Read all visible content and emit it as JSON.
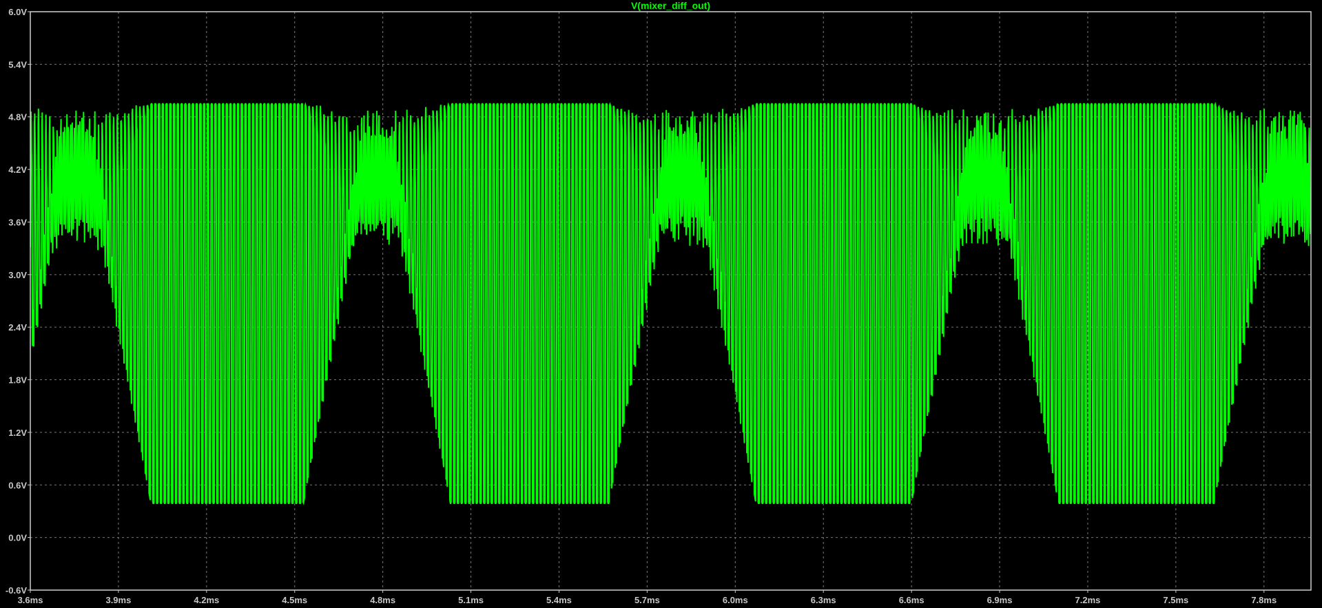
{
  "chart_data": {
    "type": "line",
    "title": "V(mixer_diff_out)",
    "xlabel": "",
    "ylabel": "",
    "x_unit": "ms",
    "y_unit": "V",
    "xlim": [
      3.6,
      7.96
    ],
    "ylim": [
      -0.6,
      6.0
    ],
    "x_ticks": [
      "3.6ms",
      "3.9ms",
      "4.2ms",
      "4.5ms",
      "4.8ms",
      "5.1ms",
      "5.4ms",
      "5.7ms",
      "6.0ms",
      "6.3ms",
      "6.6ms",
      "6.9ms",
      "7.2ms",
      "7.5ms",
      "7.8ms"
    ],
    "x_tick_values": [
      3.6,
      3.9,
      4.2,
      4.5,
      4.8,
      5.1,
      5.4,
      5.7,
      6.0,
      6.3,
      6.6,
      6.9,
      7.2,
      7.5,
      7.8
    ],
    "y_ticks": [
      "6.0V",
      "5.4V",
      "4.8V",
      "4.2V",
      "3.6V",
      "3.0V",
      "2.4V",
      "1.8V",
      "1.2V",
      "0.6V",
      "0.0V",
      "-0.6V"
    ],
    "y_tick_values": [
      6.0,
      5.4,
      4.8,
      4.2,
      3.6,
      3.0,
      2.4,
      1.8,
      1.2,
      0.6,
      0.0,
      -0.6
    ],
    "grid": true,
    "series": [
      {
        "name": "V(mixer_diff_out)",
        "color": "#00ff00",
        "signal": {
          "high_level": 4.95,
          "low_level": 0.39,
          "carrier_period_ms": 0.0128,
          "burst_period_ms": 1.03,
          "burst_centers_ms": [
            3.76,
            4.78,
            5.82,
            6.85,
            7.88
          ],
          "burst_center_level": 4.1,
          "burst_width_ms": 0.2
        }
      }
    ]
  },
  "colors": {
    "background": "#000000",
    "trace": "#00ff00",
    "grid": "#7a7a7a",
    "frame": "#cfcfcf",
    "tick_text": "#c8c8c8"
  }
}
